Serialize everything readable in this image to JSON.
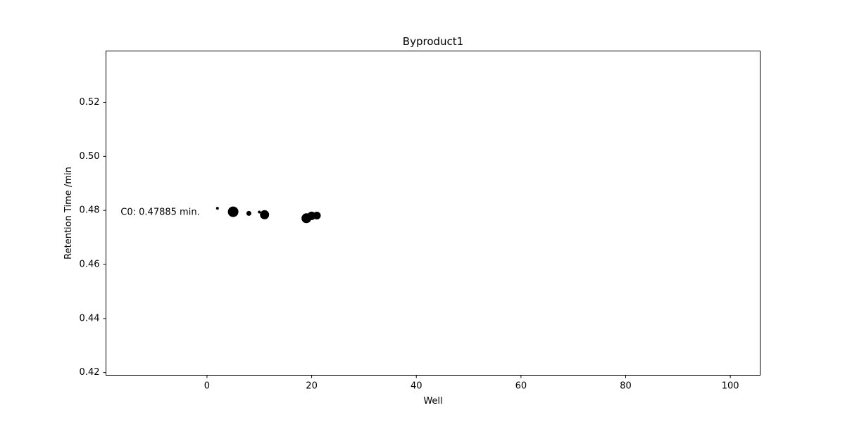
{
  "chart_data": {
    "type": "scatter",
    "title": "Byproduct1",
    "xlabel": "Well",
    "ylabel": "Retention Time /min",
    "xlim": [
      -19.3,
      105.7
    ],
    "ylim": [
      0.419,
      0.539
    ],
    "xticks": [
      0,
      20,
      40,
      60,
      80,
      100
    ],
    "yticks": [
      0.42,
      0.44,
      0.46,
      0.48,
      0.5,
      0.52
    ],
    "ytick_labels": [
      "0.42",
      "0.44",
      "0.46",
      "0.48",
      "0.50",
      "0.52"
    ],
    "grid": false,
    "annotation": {
      "text": "C0: 0.47885 min.",
      "x": -16.5,
      "y": 0.4793
    },
    "series": [
      {
        "color": "#000000",
        "points": [
          {
            "x": 2,
            "y": 0.4808,
            "size": 2.0
          },
          {
            "x": 5,
            "y": 0.4795,
            "size": 7.5
          },
          {
            "x": 8,
            "y": 0.4789,
            "size": 3.5
          },
          {
            "x": 10,
            "y": 0.4794,
            "size": 2.0
          },
          {
            "x": 11,
            "y": 0.4784,
            "size": 6.5
          },
          {
            "x": 19,
            "y": 0.4771,
            "size": 7.0
          },
          {
            "x": 20,
            "y": 0.478,
            "size": 6.0
          },
          {
            "x": 21,
            "y": 0.4781,
            "size": 5.5
          }
        ]
      }
    ]
  }
}
